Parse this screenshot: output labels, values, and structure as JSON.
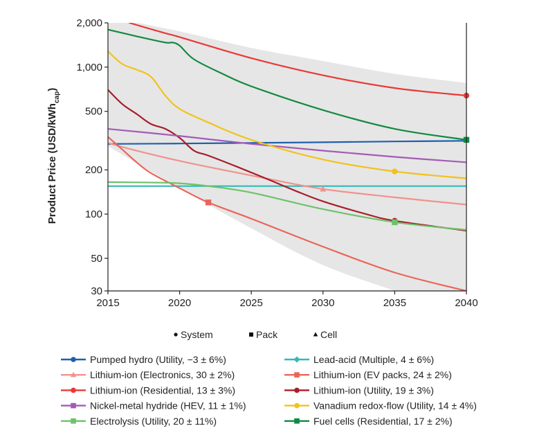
{
  "chart_data": {
    "type": "line",
    "title": "",
    "xlabel": "",
    "ylabel": "Product Price (USD/kWh",
    "ylabel_sub": "cap",
    "ylabel_close": ")",
    "yscale": "log",
    "xlim": [
      2015,
      2040
    ],
    "ylim": [
      30,
      2000
    ],
    "x_ticks": [
      2015,
      2020,
      2025,
      2030,
      2035,
      2040
    ],
    "x_tick_labels": [
      "2015",
      "2020",
      "2025",
      "2030",
      "2035",
      "2040"
    ],
    "y_ticks": [
      30,
      50,
      100,
      200,
      500,
      1000,
      2000
    ],
    "y_tick_labels": [
      "30",
      "50",
      "100",
      "200",
      "500",
      "1,000",
      "2,000"
    ],
    "grid": false,
    "legend_position": "bottom",
    "uncertainty_band": {
      "color": "#e6e6e6",
      "x": [
        2015,
        2020,
        2025,
        2030,
        2035,
        2040
      ],
      "upper": [
        2200,
        1750,
        1350,
        1100,
        900,
        780
      ],
      "lower": [
        290,
        150,
        80,
        45,
        30,
        20
      ]
    },
    "marker_key": [
      {
        "shape": "circle",
        "label": "System"
      },
      {
        "shape": "square",
        "label": "Pack"
      },
      {
        "shape": "triangle",
        "label": "Cell"
      }
    ],
    "series": [
      {
        "name": "Pumped hydro (Utility, −3 ± 6%)",
        "color": "#1f5fad",
        "marker": "circle",
        "x": [
          2015,
          2020,
          2025,
          2030,
          2035,
          2040
        ],
        "y": [
          300,
          302,
          305,
          308,
          312,
          315
        ],
        "marker_at": null
      },
      {
        "name": "Lead-acid (Multiple, 4 ± 6%)",
        "color": "#33b8b4",
        "marker": "diamond",
        "x": [
          2015,
          2020,
          2025,
          2030,
          2035,
          2040
        ],
        "y": [
          155,
          155,
          155,
          155,
          155,
          155
        ],
        "marker_at": null
      },
      {
        "name": "Lithium-ion (Electronics, 30 ± 2%)",
        "color": "#f0928c",
        "marker": "triangle",
        "x": [
          2015,
          2017,
          2020,
          2023,
          2026,
          2030,
          2035,
          2040
        ],
        "y": [
          305,
          270,
          230,
          200,
          175,
          148,
          130,
          116
        ],
        "marker_at": [
          2030,
          148
        ]
      },
      {
        "name": "Lithium-ion (EV packs, 24 ± 2%)",
        "color": "#ec6459",
        "marker": "square",
        "x": [
          2015,
          2016,
          2017,
          2018,
          2020,
          2022,
          2025,
          2030,
          2035,
          2040
        ],
        "y": [
          335,
          275,
          225,
          190,
          150,
          120,
          93,
          60,
          40,
          30
        ],
        "marker_at": [
          2022,
          120
        ]
      },
      {
        "name": "Lithium-ion (Residential, 13 ± 3%)",
        "color": "#ea3837",
        "marker": "circle",
        "x": [
          2016.5,
          2019,
          2020,
          2025,
          2030,
          2035,
          2040
        ],
        "y": [
          2000,
          1700,
          1600,
          1150,
          880,
          720,
          640
        ],
        "marker_at": [
          2040,
          640
        ]
      },
      {
        "name": "Lithium-ion (Utility, 19 ± 3%)",
        "color": "#a81d2a",
        "marker": "circle",
        "x": [
          2015,
          2016,
          2017,
          2018,
          2019,
          2020,
          2021,
          2022,
          2024,
          2026,
          2028,
          2030,
          2033,
          2035,
          2040
        ],
        "y": [
          700,
          560,
          480,
          410,
          380,
          330,
          270,
          250,
          210,
          175,
          145,
          122,
          100,
          90,
          77
        ],
        "marker_at": [
          2035,
          90
        ]
      },
      {
        "name": "Nickel-metal hydride (HEV, 11 ± 1%)",
        "color": "#a35bb6",
        "marker": "square",
        "x": [
          2015,
          2020,
          2025,
          2030,
          2035,
          2040
        ],
        "y": [
          380,
          340,
          300,
          270,
          245,
          225
        ],
        "marker_at": null
      },
      {
        "name": "Vanadium redox-flow (Utility, 14 ± 4%)",
        "color": "#f2c21b",
        "marker": "circle",
        "x": [
          2015,
          2016,
          2017,
          2018,
          2019,
          2020,
          2022,
          2025,
          2030,
          2035,
          2040
        ],
        "y": [
          1280,
          1050,
          960,
          860,
          640,
          520,
          420,
          320,
          235,
          195,
          175
        ],
        "marker_at": [
          2035,
          195
        ]
      },
      {
        "name": "Electrolysis (Utility, 20 ± 11%)",
        "color": "#6dc26a",
        "marker": "square",
        "x": [
          2015,
          2018,
          2020,
          2022,
          2025,
          2030,
          2035,
          2040
        ],
        "y": [
          165,
          164,
          162,
          155,
          140,
          108,
          88,
          78
        ],
        "marker_at": [
          2035,
          88
        ]
      },
      {
        "name": "Fuel cells (Residential, 17 ± 2%)",
        "color": "#128a41",
        "marker": "square",
        "x": [
          2015,
          2017,
          2019,
          2019.5,
          2020,
          2021,
          2023,
          2025,
          2030,
          2035,
          2040
        ],
        "y": [
          1800,
          1620,
          1470,
          1470,
          1400,
          1130,
          900,
          740,
          510,
          380,
          320
        ],
        "marker_at": [
          2040,
          320
        ]
      }
    ]
  }
}
